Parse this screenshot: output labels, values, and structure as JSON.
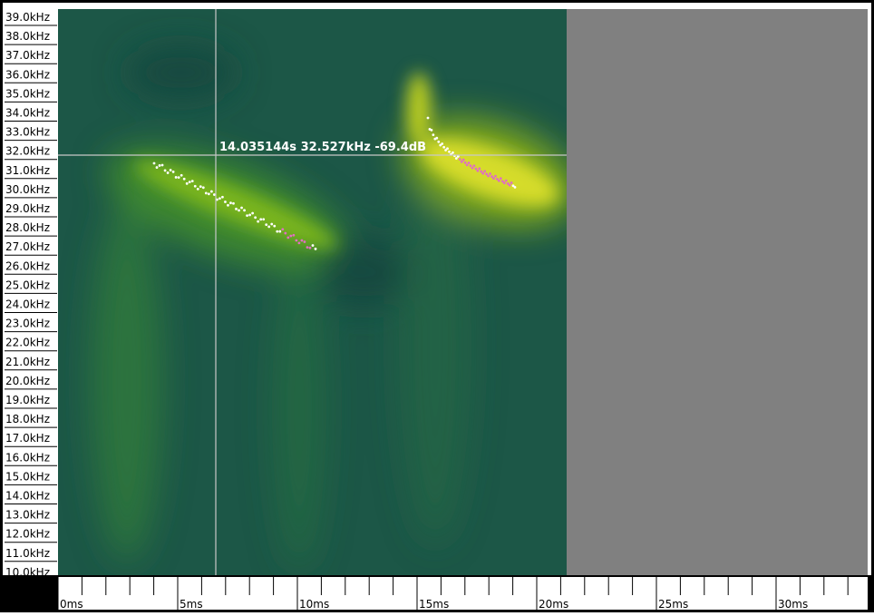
{
  "y_axis": {
    "labels": [
      "39.0kHz",
      "38.0kHz",
      "37.0kHz",
      "36.0kHz",
      "35.0kHz",
      "34.0kHz",
      "33.0kHz",
      "32.0kHz",
      "31.0kHz",
      "30.0kHz",
      "29.0kHz",
      "28.0kHz",
      "27.0kHz",
      "26.0kHz",
      "25.0kHz",
      "24.0kHz",
      "23.0kHz",
      "22.0kHz",
      "21.0kHz",
      "20.0kHz",
      "19.0kHz",
      "18.0kHz",
      "17.0kHz",
      "16.0kHz",
      "15.0kHz",
      "14.0kHz",
      "13.0kHz",
      "12.0kHz",
      "11.0kHz",
      "10.0kHz"
    ]
  },
  "x_axis": {
    "labels": [
      "0ms",
      "5ms",
      "10ms",
      "15ms",
      "20ms",
      "25ms",
      "30ms"
    ]
  },
  "cursor_readout": "14.035144s 32.527kHz -69.4dB"
}
